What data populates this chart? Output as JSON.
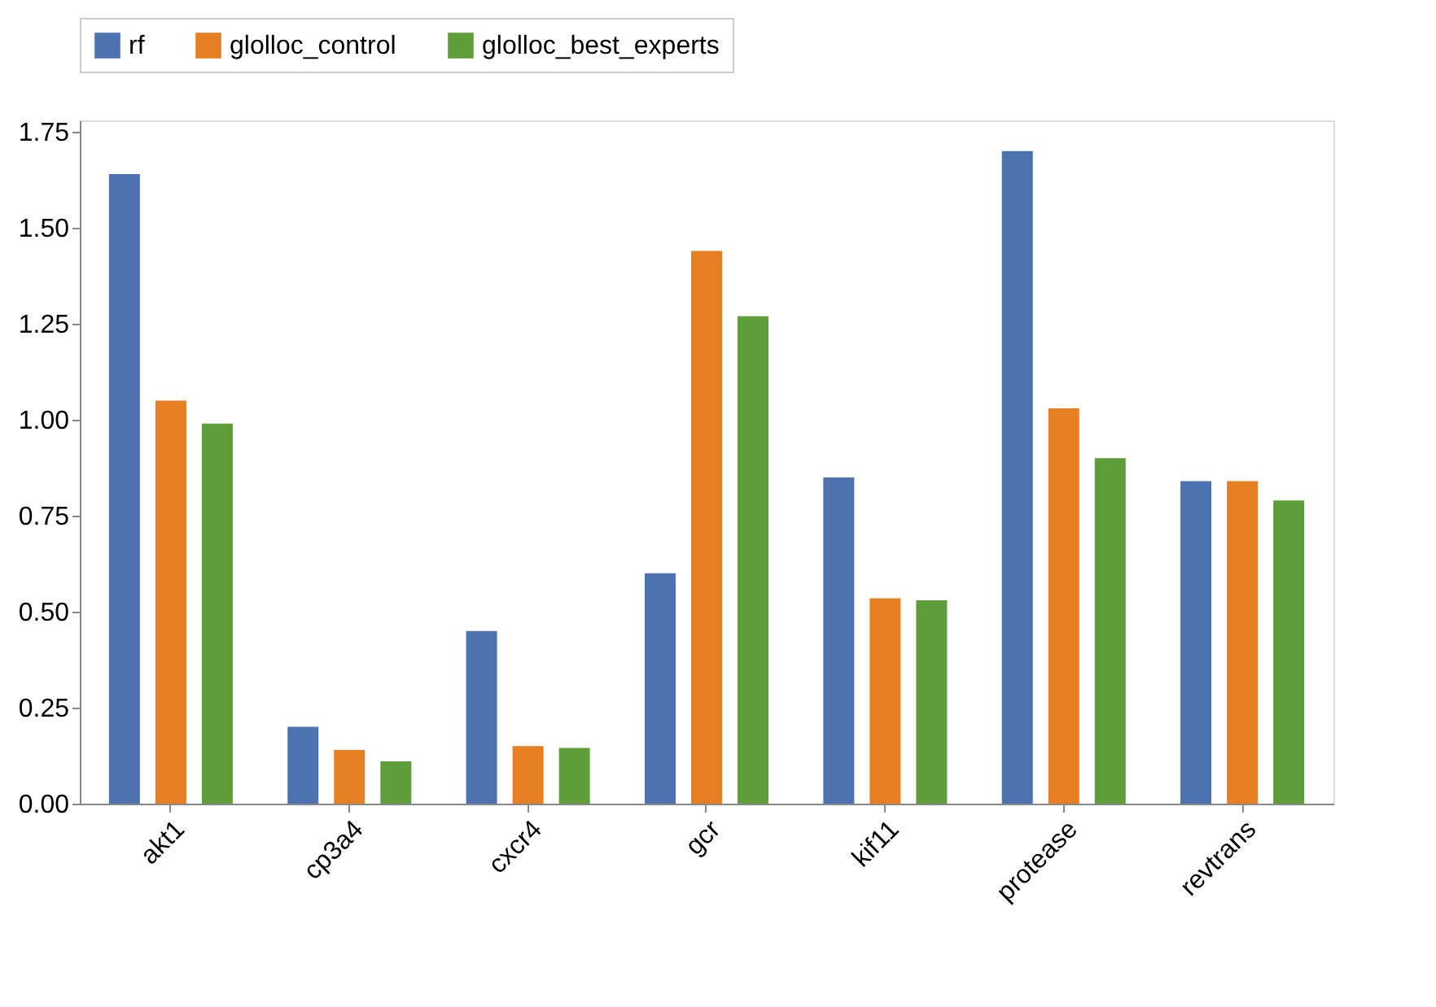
{
  "chart_data": {
    "type": "bar",
    "categories": [
      "akt1",
      "cp3a4",
      "cxcr4",
      "gcr",
      "kif11",
      "protease",
      "revtrans"
    ],
    "series": [
      {
        "name": "rf",
        "color": "#4c72b0",
        "values": [
          1.64,
          0.2,
          0.45,
          0.6,
          0.85,
          1.7,
          0.84
        ]
      },
      {
        "name": "glolloc_control",
        "color": "#e67e22",
        "values": [
          1.05,
          0.14,
          0.15,
          1.44,
          0.535,
          1.03,
          0.84
        ]
      },
      {
        "name": "glolloc_best_experts",
        "color": "#5e9e3a",
        "values": [
          0.99,
          0.11,
          0.145,
          1.27,
          0.53,
          0.9,
          0.79
        ]
      }
    ],
    "ylim": [
      0,
      1.78
    ],
    "yticks": [
      {
        "value": 0,
        "label": "0.00"
      },
      {
        "value": 0.25,
        "label": "0.25"
      },
      {
        "value": 0.5,
        "label": "0.50"
      },
      {
        "value": 0.75,
        "label": "0.75"
      },
      {
        "value": 1,
        "label": "1.00"
      },
      {
        "value": 1.25,
        "label": "1.25"
      },
      {
        "value": 1.5,
        "label": "1.50"
      },
      {
        "value": 1.75,
        "label": "1.75"
      }
    ],
    "grid": false,
    "legend": "top"
  }
}
